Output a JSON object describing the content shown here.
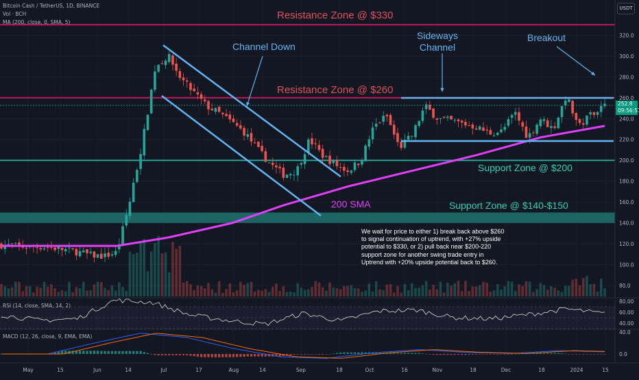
{
  "header": {
    "symbol": "Bitcoin Cash / TetherUS, 1D, BINANCE",
    "volume_label": "Vol · BCH",
    "ma_label": "MA (200, close, 0, SMA, 5)",
    "currency": "USDT"
  },
  "price_tag": {
    "price": "252.8",
    "countdown": "09:56:51"
  },
  "annotations": {
    "resistance_330": "Resistance Zone @ $330",
    "resistance_260": "Resistance Zone @ $260",
    "channel_down": "Channel Down",
    "sideways_1": "Sideways",
    "sideways_2": "Channel",
    "breakout": "Breakout",
    "support_200": "Support Zone @ $200",
    "support_140": "Support Zone @ $140-$150",
    "sma_200": "200 SMA"
  },
  "note": "We wait for price to either 1) break back above $260 to signal continuation of uptrend, with +27% upside potential to $330, or 2) pull back near $200-220 support zone for another swing trade entry in Uptrend with +20% upside potential back to $260.",
  "rsi": {
    "label": "RSI (14, close, SMA, 14, 2)",
    "ticks": [
      "80.00",
      "60.00",
      "40.00"
    ]
  },
  "macd": {
    "label": "MACD (12, 26, close, 9, EMA, EMA)",
    "ticks": [
      "40.0",
      "0.0"
    ]
  },
  "colors": {
    "background": "#131722",
    "resistance": "#c2185b",
    "support": "#26a69a",
    "channel": "#64b5f6",
    "sma": "#e040fb",
    "up": "#26a69a",
    "down": "#ef5350"
  },
  "chart_data": {
    "type": "candlestick",
    "y_axis_ticks": [
      320,
      300,
      280,
      260,
      240,
      220,
      200,
      180,
      160,
      140,
      120,
      100,
      80
    ],
    "ylim": [
      75,
      332
    ],
    "x_axis_labels": [
      "May",
      "15",
      "Jun",
      "14",
      "Jul",
      "17",
      "Aug",
      "14",
      "Sep",
      "18",
      "Oct",
      "16",
      "Nov",
      "18",
      "Dec",
      "18",
      "2024",
      "15"
    ],
    "last_price": 252.8,
    "levels": {
      "resistance_330": 330,
      "resistance_260": 260,
      "support_200": 200,
      "support_zone": [
        140,
        150
      ],
      "sideways_top": 260,
      "sideways_bottom": 218
    },
    "close_path": [
      {
        "x": 0,
        "y": 119
      },
      {
        "x": 1,
        "y": 118
      },
      {
        "x": 2,
        "y": 117
      },
      {
        "x": 3,
        "y": 117
      },
      {
        "x": 4,
        "y": 116
      },
      {
        "x": 5,
        "y": 114
      },
      {
        "x": 6,
        "y": 112
      },
      {
        "x": 7,
        "y": 109
      },
      {
        "x": 8,
        "y": 108
      },
      {
        "x": 9,
        "y": 112
      },
      {
        "x": 10,
        "y": 160
      },
      {
        "x": 11,
        "y": 218
      },
      {
        "x": 12,
        "y": 290
      },
      {
        "x": 13,
        "y": 300
      },
      {
        "x": 14,
        "y": 278
      },
      {
        "x": 15,
        "y": 265
      },
      {
        "x": 16,
        "y": 252
      },
      {
        "x": 17,
        "y": 245
      },
      {
        "x": 18,
        "y": 236
      },
      {
        "x": 19,
        "y": 226
      },
      {
        "x": 20,
        "y": 210
      },
      {
        "x": 21,
        "y": 196
      },
      {
        "x": 22,
        "y": 186
      },
      {
        "x": 23,
        "y": 190
      },
      {
        "x": 24,
        "y": 220
      },
      {
        "x": 25,
        "y": 205
      },
      {
        "x": 26,
        "y": 196
      },
      {
        "x": 27,
        "y": 190
      },
      {
        "x": 28,
        "y": 200
      },
      {
        "x": 29,
        "y": 232
      },
      {
        "x": 30,
        "y": 243
      },
      {
        "x": 31,
        "y": 212
      },
      {
        "x": 32,
        "y": 224
      },
      {
        "x": 33,
        "y": 252
      },
      {
        "x": 34,
        "y": 240
      },
      {
        "x": 35,
        "y": 238
      },
      {
        "x": 36,
        "y": 235
      },
      {
        "x": 37,
        "y": 232
      },
      {
        "x": 38,
        "y": 226
      },
      {
        "x": 39,
        "y": 228
      },
      {
        "x": 40,
        "y": 246
      },
      {
        "x": 41,
        "y": 222
      },
      {
        "x": 42,
        "y": 240
      },
      {
        "x": 43,
        "y": 230
      },
      {
        "x": 44,
        "y": 262
      },
      {
        "x": 45,
        "y": 232
      },
      {
        "x": 46,
        "y": 246
      },
      {
        "x": 47,
        "y": 252
      }
    ],
    "sma_200": [
      {
        "x": 0,
        "y": 118
      },
      {
        "x": 9,
        "y": 118
      },
      {
        "x": 13,
        "y": 126
      },
      {
        "x": 18,
        "y": 140
      },
      {
        "x": 22,
        "y": 157
      },
      {
        "x": 27,
        "y": 175
      },
      {
        "x": 32,
        "y": 190
      },
      {
        "x": 37,
        "y": 205
      },
      {
        "x": 42,
        "y": 222
      },
      {
        "x": 47,
        "y": 233
      }
    ],
    "rsi_series": [
      {
        "x": 0,
        "y": 55
      },
      {
        "x": 5,
        "y": 45
      },
      {
        "x": 9,
        "y": 48
      },
      {
        "x": 11,
        "y": 82
      },
      {
        "x": 13,
        "y": 78
      },
      {
        "x": 16,
        "y": 55
      },
      {
        "x": 20,
        "y": 45
      },
      {
        "x": 22,
        "y": 38
      },
      {
        "x": 25,
        "y": 58
      },
      {
        "x": 27,
        "y": 44
      },
      {
        "x": 30,
        "y": 62
      },
      {
        "x": 33,
        "y": 64
      },
      {
        "x": 36,
        "y": 50
      },
      {
        "x": 39,
        "y": 48
      },
      {
        "x": 42,
        "y": 56
      },
      {
        "x": 44,
        "y": 66
      },
      {
        "x": 47,
        "y": 57
      }
    ],
    "macd_series": [
      {
        "x": 0,
        "y": 0
      },
      {
        "x": 9,
        "y": 0
      },
      {
        "x": 11,
        "y": 20
      },
      {
        "x": 13,
        "y": 38
      },
      {
        "x": 16,
        "y": 30
      },
      {
        "x": 20,
        "y": 10
      },
      {
        "x": 22,
        "y": -5
      },
      {
        "x": 25,
        "y": -8
      },
      {
        "x": 29,
        "y": 2
      },
      {
        "x": 33,
        "y": 8
      },
      {
        "x": 37,
        "y": 3
      },
      {
        "x": 41,
        "y": 1
      },
      {
        "x": 44,
        "y": 6
      },
      {
        "x": 47,
        "y": 4
      }
    ]
  }
}
